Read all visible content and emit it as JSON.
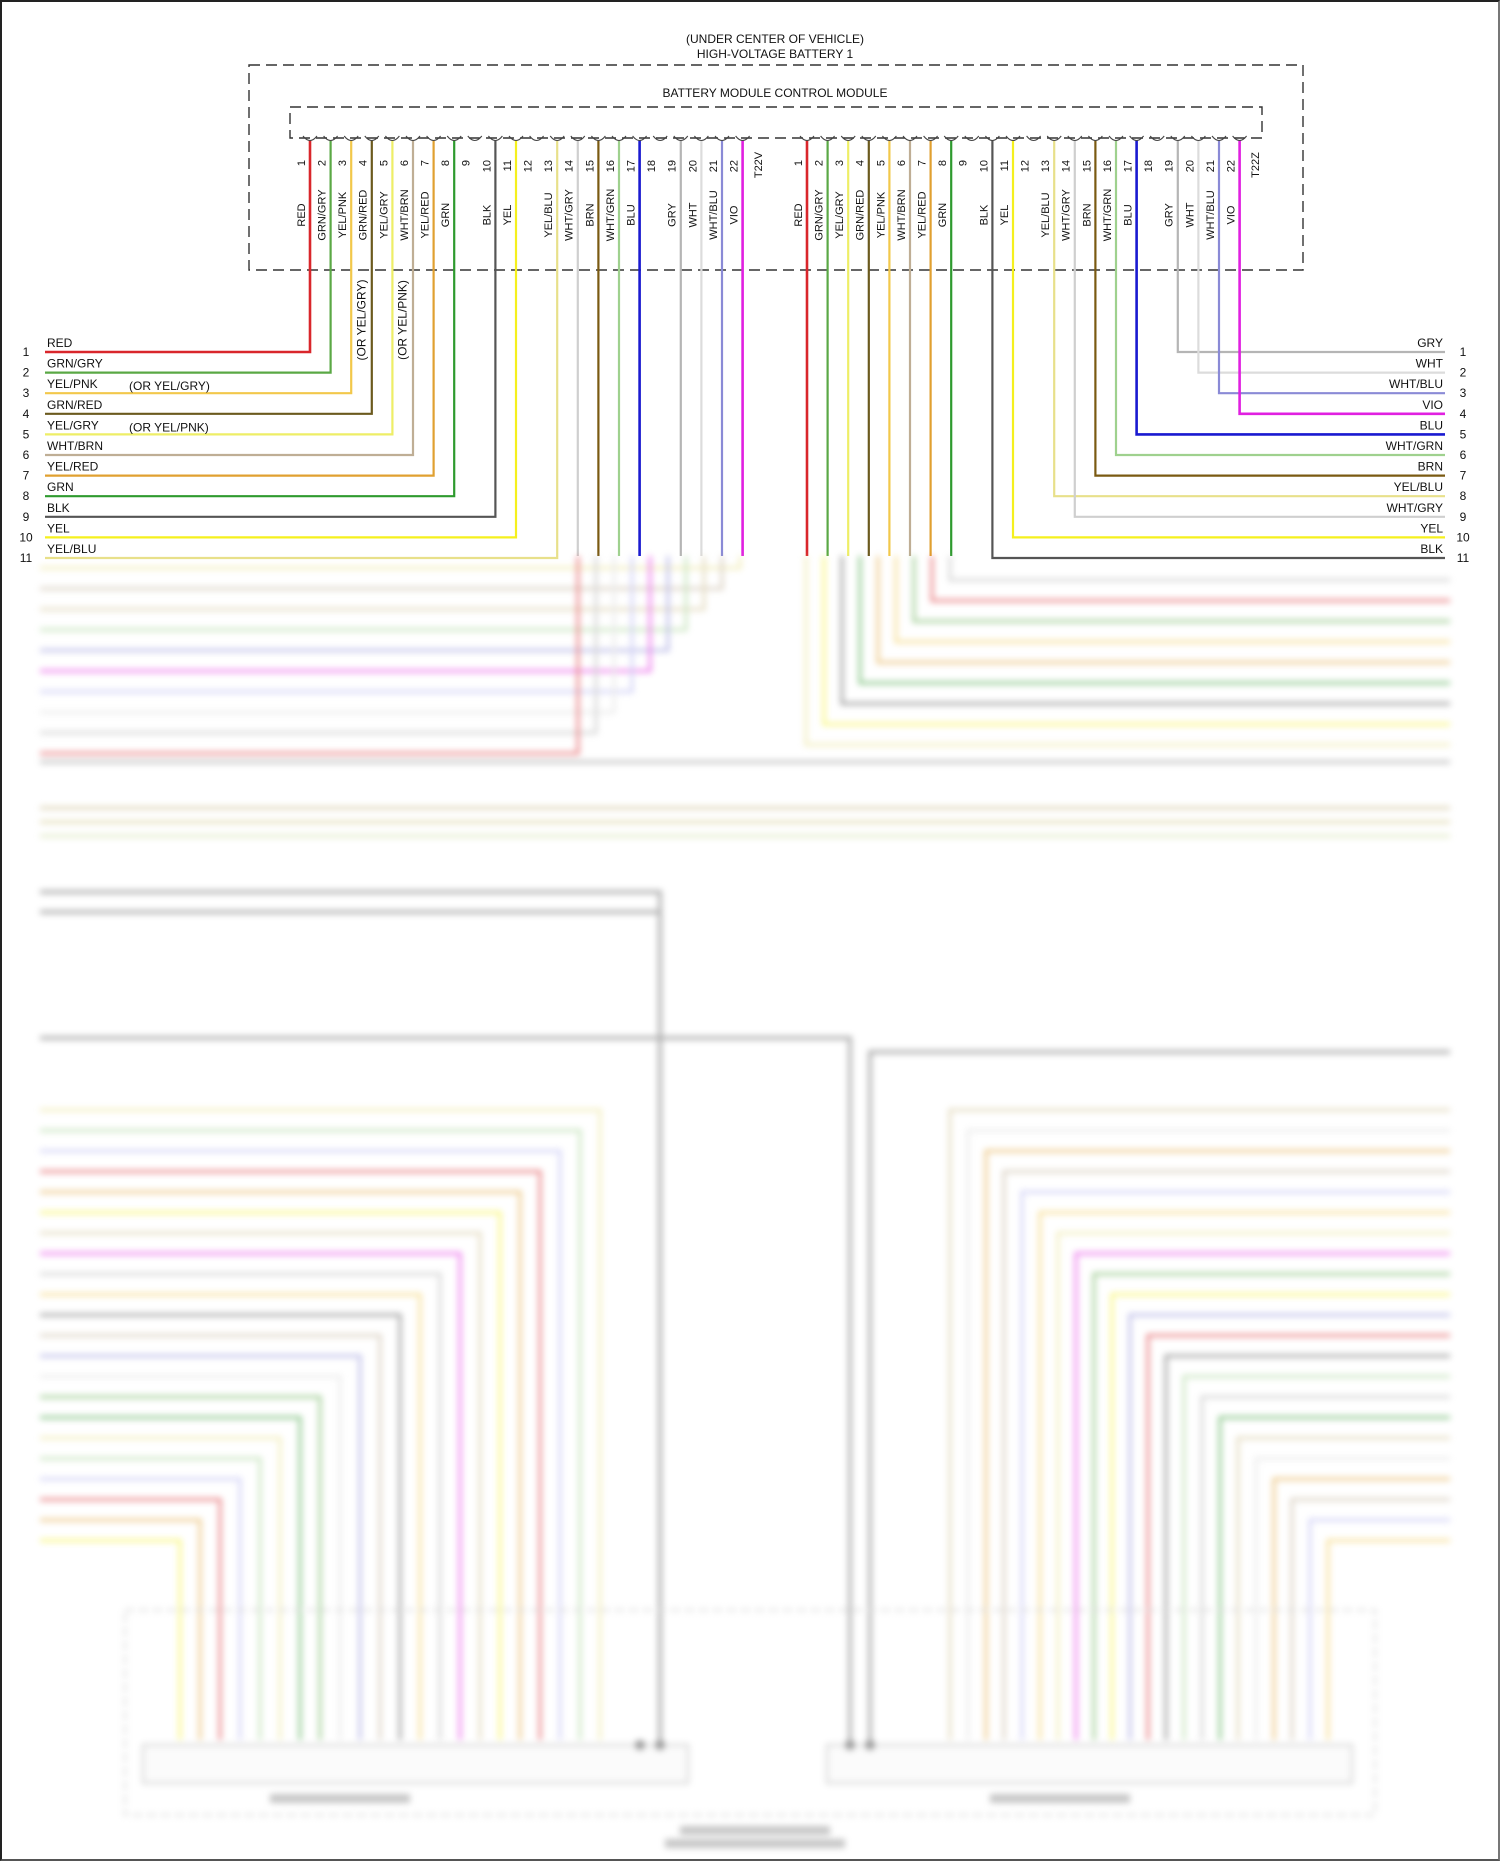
{
  "header": {
    "location": "(UNDER CENTER OF VEHICLE)",
    "component": "HIGH-VOLTAGE BATTERY 1",
    "module": "BATTERY MODULE CONTROL MODULE"
  },
  "connectors": [
    {
      "id": "T22V",
      "label": "T22V",
      "pins": [
        {
          "pin": "1",
          "wire": "RED",
          "color": "#d9262b"
        },
        {
          "pin": "2",
          "wire": "GRN/GRY",
          "color": "#5aa845"
        },
        {
          "pin": "3",
          "wire": "YEL/PNK",
          "color": "#f2c84b"
        },
        {
          "pin": "4",
          "wire": "GRN/RED",
          "color": "#6b5a1e"
        },
        {
          "pin": "5",
          "wire": "YEL/GRY",
          "color": "#eeee66"
        },
        {
          "pin": "6",
          "wire": "WHT/BRN",
          "color": "#bfae95"
        },
        {
          "pin": "7",
          "wire": "YEL/RED",
          "color": "#e0a030"
        },
        {
          "pin": "8",
          "wire": "GRN",
          "color": "#2e9a2e"
        },
        {
          "pin": "9",
          "wire": "",
          "color": ""
        },
        {
          "pin": "10",
          "wire": "BLK",
          "color": "#555555"
        },
        {
          "pin": "11",
          "wire": "YEL",
          "color": "#f5f01e"
        },
        {
          "pin": "12",
          "wire": "",
          "color": ""
        },
        {
          "pin": "13",
          "wire": "YEL/BLU",
          "color": "#e8e08a"
        },
        {
          "pin": "14",
          "wire": "WHT/GRY",
          "color": "#cfcfcf"
        },
        {
          "pin": "15",
          "wire": "BRN",
          "color": "#7a5a12"
        },
        {
          "pin": "16",
          "wire": "WHT/GRN",
          "color": "#9fd18e"
        },
        {
          "pin": "17",
          "wire": "BLU",
          "color": "#1a1ad0"
        },
        {
          "pin": "18",
          "wire": "",
          "color": ""
        },
        {
          "pin": "19",
          "wire": "GRY",
          "color": "#b5b5b5"
        },
        {
          "pin": "20",
          "wire": "WHT",
          "color": "#dcdcdc"
        },
        {
          "pin": "21",
          "wire": "WHT/BLU",
          "color": "#8a8ad6"
        },
        {
          "pin": "22",
          "wire": "VIO",
          "color": "#e020e0"
        }
      ]
    },
    {
      "id": "T22Z",
      "label": "T22Z",
      "pins": [
        {
          "pin": "1",
          "wire": "RED",
          "color": "#d9262b"
        },
        {
          "pin": "2",
          "wire": "GRN/GRY",
          "color": "#5aa845"
        },
        {
          "pin": "3",
          "wire": "YEL/GRY",
          "color": "#eeee66"
        },
        {
          "pin": "4",
          "wire": "GRN/RED",
          "color": "#6b5a1e"
        },
        {
          "pin": "5",
          "wire": "YEL/PNK",
          "color": "#f2c84b"
        },
        {
          "pin": "6",
          "wire": "WHT/BRN",
          "color": "#bfae95"
        },
        {
          "pin": "7",
          "wire": "YEL/RED",
          "color": "#e0a030"
        },
        {
          "pin": "8",
          "wire": "GRN",
          "color": "#2e9a2e"
        },
        {
          "pin": "9",
          "wire": "",
          "color": ""
        },
        {
          "pin": "10",
          "wire": "BLK",
          "color": "#555555"
        },
        {
          "pin": "11",
          "wire": "YEL",
          "color": "#f5f01e"
        },
        {
          "pin": "12",
          "wire": "",
          "color": ""
        },
        {
          "pin": "13",
          "wire": "YEL/BLU",
          "color": "#e8e08a"
        },
        {
          "pin": "14",
          "wire": "WHT/GRY",
          "color": "#cfcfcf"
        },
        {
          "pin": "15",
          "wire": "BRN",
          "color": "#7a5a12"
        },
        {
          "pin": "16",
          "wire": "WHT/GRN",
          "color": "#9fd18e"
        },
        {
          "pin": "17",
          "wire": "BLU",
          "color": "#1a1ad0"
        },
        {
          "pin": "18",
          "wire": "",
          "color": ""
        },
        {
          "pin": "19",
          "wire": "GRY",
          "color": "#b5b5b5"
        },
        {
          "pin": "20",
          "wire": "WHT",
          "color": "#dcdcdc"
        },
        {
          "pin": "21",
          "wire": "WHT/BLU",
          "color": "#8a8ad6"
        },
        {
          "pin": "22",
          "wire": "VIO",
          "color": "#e020e0"
        }
      ]
    }
  ],
  "alternates": [
    {
      "pin": "3",
      "connector": "T22V",
      "note": "(OR YEL/GRY)"
    },
    {
      "pin": "5",
      "connector": "T22V",
      "note": "(OR YEL/PNK)"
    }
  ],
  "left_rows": [
    {
      "row": "1",
      "wire": "RED",
      "color": "#d9262b",
      "from_pin": "1",
      "note": ""
    },
    {
      "row": "2",
      "wire": "GRN/GRY",
      "color": "#5aa845",
      "from_pin": "2",
      "note": ""
    },
    {
      "row": "3",
      "wire": "YEL/PNK",
      "color": "#f2c84b",
      "from_pin": "3",
      "note": "(OR YEL/GRY)"
    },
    {
      "row": "4",
      "wire": "GRN/RED",
      "color": "#6b5a1e",
      "from_pin": "4",
      "note": ""
    },
    {
      "row": "5",
      "wire": "YEL/GRY",
      "color": "#eeee66",
      "from_pin": "5",
      "note": "(OR YEL/PNK)"
    },
    {
      "row": "6",
      "wire": "WHT/BRN",
      "color": "#bfae95",
      "from_pin": "6",
      "note": ""
    },
    {
      "row": "7",
      "wire": "YEL/RED",
      "color": "#e0a030",
      "from_pin": "7",
      "note": ""
    },
    {
      "row": "8",
      "wire": "GRN",
      "color": "#2e9a2e",
      "from_pin": "8",
      "note": ""
    },
    {
      "row": "9",
      "wire": "BLK",
      "color": "#555555",
      "from_pin": "10",
      "note": ""
    },
    {
      "row": "10",
      "wire": "YEL",
      "color": "#f5f01e",
      "from_pin": "11",
      "note": ""
    },
    {
      "row": "11",
      "wire": "YEL/BLU",
      "color": "#e8e08a",
      "from_pin": "13",
      "note": ""
    }
  ],
  "right_rows": [
    {
      "row": "1",
      "wire": "GRY",
      "color": "#b5b5b5",
      "from_pin": "19"
    },
    {
      "row": "2",
      "wire": "WHT",
      "color": "#dcdcdc",
      "from_pin": "20"
    },
    {
      "row": "3",
      "wire": "WHT/BLU",
      "color": "#8a8ad6",
      "from_pin": "21"
    },
    {
      "row": "4",
      "wire": "VIO",
      "color": "#e020e0",
      "from_pin": "22"
    },
    {
      "row": "5",
      "wire": "BLU",
      "color": "#1a1ad0",
      "from_pin": "17"
    },
    {
      "row": "6",
      "wire": "WHT/GRN",
      "color": "#9fd18e",
      "from_pin": "16"
    },
    {
      "row": "7",
      "wire": "BRN",
      "color": "#7a5a12",
      "from_pin": "15"
    },
    {
      "row": "8",
      "wire": "YEL/BLU",
      "color": "#e8e08a",
      "from_pin": "13"
    },
    {
      "row": "9",
      "wire": "WHT/GRY",
      "color": "#cfcfcf",
      "from_pin": "14"
    },
    {
      "row": "10",
      "wire": "YEL",
      "color": "#f5f01e",
      "from_pin": "11"
    },
    {
      "row": "11",
      "wire": "BLK",
      "color": "#555555",
      "from_pin": "10"
    }
  ],
  "lower_section": {
    "legibility": "obscured (blurred in screenshot)",
    "modules": [
      "battery-module-left",
      "battery-module-right"
    ],
    "enclosure": "high-voltage-battery-lower-enclosure"
  }
}
